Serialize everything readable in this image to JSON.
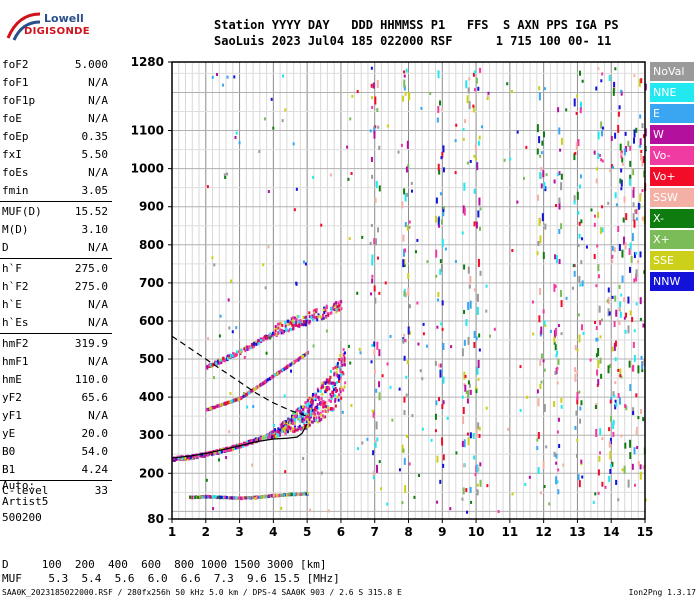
{
  "logo": {
    "line1": "Lowell",
    "line2": "DIGISONDE"
  },
  "header": {
    "line1": "Station YYYY DAY   DDD HHMMSS P1   FFS  S AXN PPS IGA PS",
    "line2": "SaoLuis 2023 Jul04 185 022000 RSF      1 715 100 00- 11"
  },
  "params": [
    {
      "k": "foF2",
      "v": "5.000"
    },
    {
      "k": "foF1",
      "v": "N/A"
    },
    {
      "k": "foF1p",
      "v": "N/A"
    },
    {
      "k": "foE",
      "v": "N/A"
    },
    {
      "k": "foEp",
      "v": "0.35"
    },
    {
      "k": "fxI",
      "v": "5.50"
    },
    {
      "k": "foEs",
      "v": "N/A"
    },
    {
      "k": "fmin",
      "v": "3.05"
    },
    {
      "k": "MUF(D)",
      "v": "15.52"
    },
    {
      "k": "M(D)",
      "v": "3.10"
    },
    {
      "k": "D",
      "v": "N/A"
    },
    {
      "k": "h`F",
      "v": "275.0"
    },
    {
      "k": "h`F2",
      "v": "275.0"
    },
    {
      "k": "h`E",
      "v": "N/A"
    },
    {
      "k": "h`Es",
      "v": "N/A"
    },
    {
      "k": "hmF2",
      "v": "319.9"
    },
    {
      "k": "hmF1",
      "v": "N/A"
    },
    {
      "k": "hmE",
      "v": "110.0"
    },
    {
      "k": "yF2",
      "v": "65.6"
    },
    {
      "k": "yF1",
      "v": "N/A"
    },
    {
      "k": "yE",
      "v": "20.0"
    },
    {
      "k": "B0",
      "v": "54.0"
    },
    {
      "k": "B1",
      "v": "4.24"
    },
    {
      "k": "C-level",
      "v": "33"
    }
  ],
  "auto": {
    "line1": "Auto:",
    "line2": "Artist5",
    "line3": "500200"
  },
  "legend": [
    {
      "label": "NoVal",
      "color": "#9a9a9a"
    },
    {
      "label": "NNE",
      "color": "#22e8f0"
    },
    {
      "label": "E",
      "color": "#3aa6f2"
    },
    {
      "label": "W",
      "color": "#b4109e"
    },
    {
      "label": "Vo-",
      "color": "#f03ca2"
    },
    {
      "label": "Vo+",
      "color": "#f20c28"
    },
    {
      "label": "SSW",
      "color": "#f5b0a6"
    },
    {
      "label": "X-",
      "color": "#0f7c10"
    },
    {
      "label": "X+",
      "color": "#7cbc58"
    },
    {
      "label": "SSE",
      "color": "#cdd01a"
    },
    {
      "label": "NNW",
      "color": "#1212d8"
    }
  ],
  "footer": {
    "d_row": "D     100  200  400  600  800 1000 1500 3000 [km]",
    "muf_row": "MUF    5.3  5.4  5.6  6.0  6.6  7.3  9.6 15.5 [MHz]",
    "file_line": "SAA0K_2023185022000.RSF / 280fx256h 50 kHz 5.0 km / DPS-4 SAA0K 903 / 2.6 S 315.8 E",
    "version": "Ion2Png 1.3.17"
  },
  "chart_data": {
    "type": "scatter",
    "x_ticks": [
      1,
      2,
      3,
      4,
      5,
      6,
      7,
      8,
      9,
      10,
      11,
      12,
      13,
      14,
      15
    ],
    "xlim": [
      1,
      15
    ],
    "y_ticks": [
      80,
      200,
      300,
      400,
      500,
      600,
      700,
      800,
      900,
      1000,
      1100,
      1280
    ],
    "ylim": [
      80,
      1280
    ],
    "xlabel": "",
    "ylabel": "",
    "grid": true,
    "trace_profile": {
      "solid_x": [
        1.0,
        1.5,
        2.0,
        2.5,
        3.0,
        3.5,
        4.0,
        4.4,
        4.7,
        4.85,
        5.0
      ],
      "solid_y": [
        240,
        245,
        252,
        262,
        272,
        283,
        290,
        292,
        295,
        305,
        330
      ],
      "dashed_x": [
        1.0,
        1.5,
        2.0,
        2.5,
        3.0,
        3.5,
        4.0,
        4.5,
        5.0
      ],
      "dashed_y": [
        560,
        530,
        500,
        470,
        440,
        410,
        385,
        365,
        350
      ]
    },
    "echo_branches": [
      {
        "name": "F-trace",
        "x": [
          1.0,
          1.5,
          2.0,
          2.5,
          3.0,
          3.5,
          4.0,
          4.5,
          5.0,
          5.3,
          5.6,
          5.9,
          6.1
        ],
        "y": [
          240,
          244,
          252,
          262,
          275,
          290,
          305,
          325,
          345,
          365,
          390,
          420,
          460
        ]
      },
      {
        "name": "upper-trace",
        "x": [
          2.0,
          2.5,
          3.0,
          3.5,
          4.0,
          4.5,
          5.0,
          5.5,
          6.0
        ],
        "y": [
          480,
          500,
          520,
          545,
          570,
          590,
          605,
          620,
          640
        ]
      },
      {
        "name": "oblique-trace",
        "x": [
          2.0,
          2.5,
          3.0,
          3.5,
          4.0,
          4.5,
          5.0
        ],
        "y": [
          370,
          385,
          400,
          430,
          460,
          490,
          520
        ]
      },
      {
        "name": "low-echoes",
        "x": [
          1.5,
          2.0,
          2.5,
          3.0,
          3.5,
          4.0,
          4.5,
          5.0
        ],
        "y": [
          140,
          142,
          140,
          138,
          140,
          145,
          148,
          150
        ]
      }
    ],
    "vertical_streaks_x": [
      7.0,
      7.9,
      8.9,
      9.7,
      10.0,
      11.9,
      12.4,
      13.0,
      13.6,
      14.0,
      14.3,
      14.6,
      14.9
    ]
  }
}
